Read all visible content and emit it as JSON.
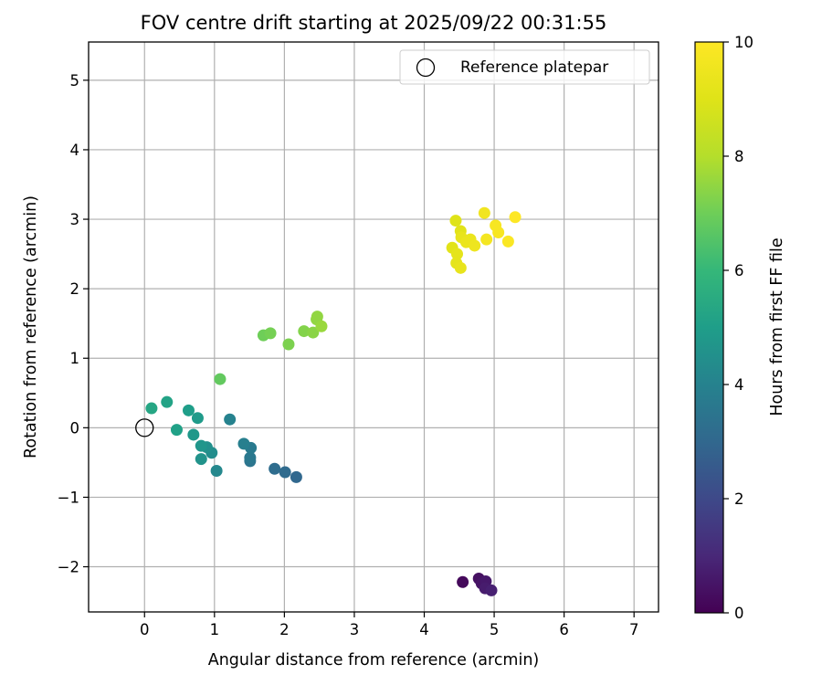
{
  "chart_data": {
    "type": "scatter",
    "title": "FOV centre drift starting at 2025/09/22 00:31:55",
    "xlabel": "Angular distance from reference (arcmin)",
    "ylabel": "Rotation from reference (arcmin)",
    "xlim": [
      -0.8,
      7.35
    ],
    "ylim": [
      -2.65,
      5.55
    ],
    "xticks": [
      0,
      1,
      2,
      3,
      4,
      5,
      6,
      7
    ],
    "yticks": [
      -2,
      -1,
      0,
      1,
      2,
      3,
      4,
      5
    ],
    "xtick_labels": [
      "0",
      "1",
      "2",
      "3",
      "4",
      "5",
      "6",
      "7"
    ],
    "ytick_labels": [
      "−2",
      "−1",
      "0",
      "1",
      "2",
      "3",
      "4",
      "5"
    ],
    "grid": true,
    "colormap": "viridis",
    "colorbar": {
      "label": "Hours from first FF file",
      "range": [
        0,
        10
      ],
      "ticks": [
        0,
        2,
        4,
        6,
        8,
        10
      ],
      "tick_labels": [
        "0",
        "2",
        "4",
        "6",
        "8",
        "10"
      ]
    },
    "legend": {
      "position": "top-right",
      "entries": [
        {
          "label": "Reference platepar",
          "marker": "open-circle"
        }
      ]
    },
    "reference_point": {
      "x": 0,
      "y": 0
    },
    "points": [
      {
        "x": 4.55,
        "y": -2.22,
        "t": 0.2
      },
      {
        "x": 4.78,
        "y": -2.17,
        "t": 0.4
      },
      {
        "x": 4.82,
        "y": -2.24,
        "t": 0.5
      },
      {
        "x": 4.88,
        "y": -2.21,
        "t": 0.6
      },
      {
        "x": 4.87,
        "y": -2.31,
        "t": 0.7
      },
      {
        "x": 4.96,
        "y": -2.34,
        "t": 0.8
      },
      {
        "x": 2.17,
        "y": -0.71,
        "t": 3.0
      },
      {
        "x": 2.01,
        "y": -0.64,
        "t": 3.1
      },
      {
        "x": 1.86,
        "y": -0.59,
        "t": 3.2
      },
      {
        "x": 1.51,
        "y": -0.48,
        "t": 3.5
      },
      {
        "x": 1.51,
        "y": -0.43,
        "t": 3.6
      },
      {
        "x": 1.52,
        "y": -0.29,
        "t": 3.7
      },
      {
        "x": 1.42,
        "y": -0.23,
        "t": 3.9
      },
      {
        "x": 1.22,
        "y": 0.12,
        "t": 4.0
      },
      {
        "x": 1.03,
        "y": -0.62,
        "t": 4.2
      },
      {
        "x": 0.96,
        "y": -0.36,
        "t": 4.4
      },
      {
        "x": 0.89,
        "y": -0.28,
        "t": 4.5
      },
      {
        "x": 0.81,
        "y": -0.45,
        "t": 4.6
      },
      {
        "x": 0.81,
        "y": -0.26,
        "t": 4.7
      },
      {
        "x": 0.7,
        "y": -0.1,
        "t": 4.8
      },
      {
        "x": 0.76,
        "y": 0.14,
        "t": 4.9
      },
      {
        "x": 0.63,
        "y": 0.25,
        "t": 5.0
      },
      {
        "x": 0.46,
        "y": -0.03,
        "t": 5.1
      },
      {
        "x": 0.32,
        "y": 0.37,
        "t": 5.2
      },
      {
        "x": 0.1,
        "y": 0.28,
        "t": 5.3
      },
      {
        "x": 1.08,
        "y": 0.7,
        "t": 6.8
      },
      {
        "x": 1.7,
        "y": 1.33,
        "t": 7.0
      },
      {
        "x": 1.8,
        "y": 1.36,
        "t": 7.1
      },
      {
        "x": 2.06,
        "y": 1.2,
        "t": 7.2
      },
      {
        "x": 2.28,
        "y": 1.39,
        "t": 7.3
      },
      {
        "x": 2.41,
        "y": 1.37,
        "t": 7.4
      },
      {
        "x": 2.46,
        "y": 1.56,
        "t": 7.5
      },
      {
        "x": 2.47,
        "y": 1.6,
        "t": 7.5
      },
      {
        "x": 2.53,
        "y": 1.46,
        "t": 7.6
      },
      {
        "x": 4.45,
        "y": 2.98,
        "t": 9.0
      },
      {
        "x": 4.52,
        "y": 2.83,
        "t": 9.1
      },
      {
        "x": 4.4,
        "y": 2.59,
        "t": 9.1
      },
      {
        "x": 4.47,
        "y": 2.5,
        "t": 9.2
      },
      {
        "x": 4.46,
        "y": 2.37,
        "t": 9.2
      },
      {
        "x": 4.52,
        "y": 2.3,
        "t": 9.3
      },
      {
        "x": 4.53,
        "y": 2.74,
        "t": 9.3
      },
      {
        "x": 4.6,
        "y": 2.67,
        "t": 9.4
      },
      {
        "x": 4.66,
        "y": 2.71,
        "t": 9.4
      },
      {
        "x": 4.72,
        "y": 2.62,
        "t": 9.5
      },
      {
        "x": 4.86,
        "y": 3.09,
        "t": 9.6
      },
      {
        "x": 4.89,
        "y": 2.71,
        "t": 9.7
      },
      {
        "x": 5.02,
        "y": 2.91,
        "t": 9.8
      },
      {
        "x": 5.06,
        "y": 2.81,
        "t": 9.8
      },
      {
        "x": 5.2,
        "y": 2.68,
        "t": 9.9
      },
      {
        "x": 5.3,
        "y": 3.03,
        "t": 10.0
      }
    ]
  }
}
